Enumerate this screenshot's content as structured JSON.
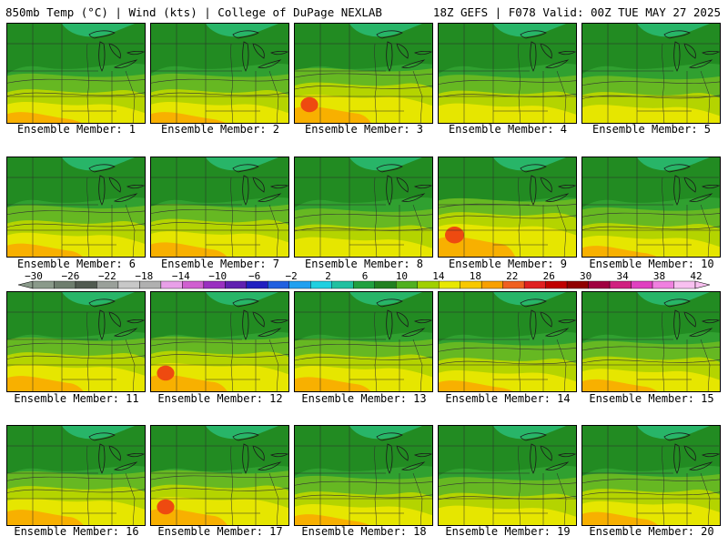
{
  "header": {
    "left": "850mb Temp (°C) | Wind (kts) | College of DuPage NEXLAB",
    "right": "18Z GEFS | F078 Valid: 00Z TUE MAY 27 2025"
  },
  "members": [
    {
      "label": "Ensemble Member: 1",
      "level": 0.35
    },
    {
      "label": "Ensemble Member: 2",
      "level": 0.35
    },
    {
      "label": "Ensemble Member: 3",
      "level": 0.6
    },
    {
      "label": "Ensemble Member: 4",
      "level": 0.3
    },
    {
      "label": "Ensemble Member: 5",
      "level": 0.25
    },
    {
      "label": "Ensemble Member: 6",
      "level": 0.45
    },
    {
      "label": "Ensemble Member: 7",
      "level": 0.5
    },
    {
      "label": "Ensemble Member: 8",
      "level": 0.3
    },
    {
      "label": "Ensemble Member: 9",
      "level": 0.75
    },
    {
      "label": "Ensemble Member: 10",
      "level": 0.35
    },
    {
      "label": "Ensemble Member: 11",
      "level": 0.55
    },
    {
      "label": "Ensemble Member: 12",
      "level": 0.6
    },
    {
      "label": "Ensemble Member: 13",
      "level": 0.5
    },
    {
      "label": "Ensemble Member: 14",
      "level": 0.35
    },
    {
      "label": "Ensemble Member: 15",
      "level": 0.4
    },
    {
      "label": "Ensemble Member: 16",
      "level": 0.55
    },
    {
      "label": "Ensemble Member: 17",
      "level": 0.6
    },
    {
      "label": "Ensemble Member: 18",
      "level": 0.35
    },
    {
      "label": "Ensemble Member: 19",
      "level": 0.3
    },
    {
      "label": "Ensemble Member: 20",
      "level": 0.45
    }
  ],
  "colorbar": {
    "ticks": [
      "-30",
      "-26",
      "-22",
      "-18",
      "-14",
      "-10",
      "-6",
      "-2",
      "2",
      "6",
      "10",
      "14",
      "18",
      "22",
      "26",
      "30",
      "34",
      "38",
      "42"
    ],
    "colors": [
      "#8a9a8a",
      "#6e7e6e",
      "#505a50",
      "#9aa09a",
      "#c8c8c8",
      "#b0b0b0",
      "#e8a0e8",
      "#d060d0",
      "#9a30c0",
      "#6020b0",
      "#2020c0",
      "#2060e0",
      "#20a0f0",
      "#20d0e0",
      "#20c0a0",
      "#20a040",
      "#208020",
      "#50b020",
      "#a0d000",
      "#e8e800",
      "#f8c800",
      "#f8a000",
      "#f06020",
      "#e02020",
      "#c00000",
      "#900000",
      "#a00040",
      "#d02080",
      "#e040c0",
      "#f080e0",
      "#f8c0f0"
    ]
  }
}
